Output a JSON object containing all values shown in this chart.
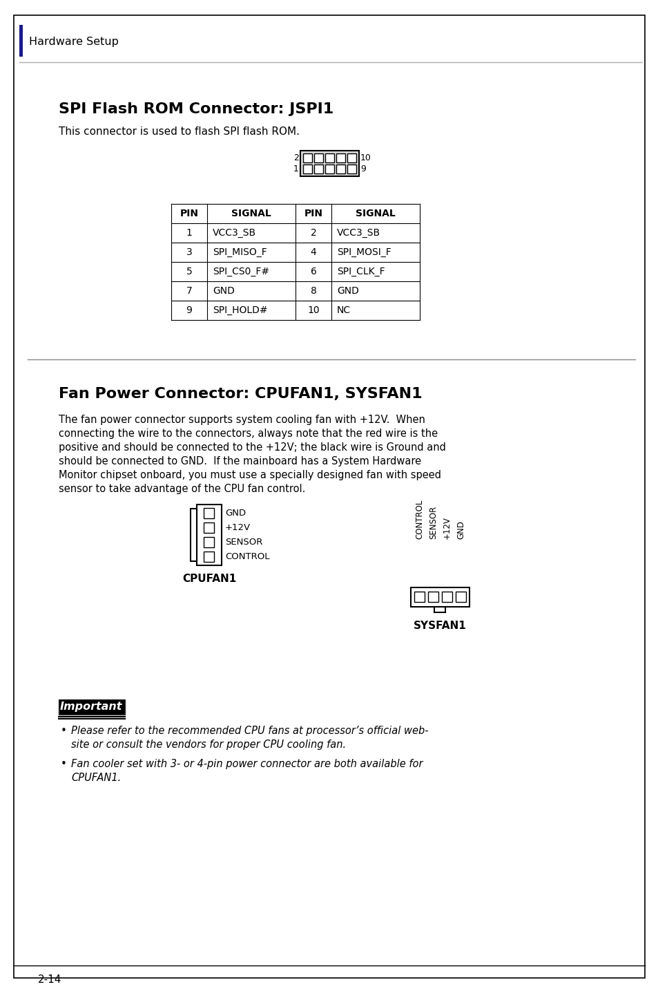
{
  "page_bg": "#ffffff",
  "border_color": "#000000",
  "header_bar_color": "#1a1a8c",
  "header_text": "Hardware Setup",
  "section1_title": "SPI Flash ROM Connector: JSPI1",
  "section1_desc": "This connector is used to flash SPI flash ROM.",
  "section2_title": "Fan Power Connector: CPUFAN1, SYSFAN1",
  "section2_desc_lines": [
    "The fan power connector supports system cooling fan with +12V.  When",
    "connecting the wire to the connectors, always note that the red wire is the",
    "positive and should be connected to the +12V; the black wire is Ground and",
    "should be connected to GND.  If the mainboard has a System Hardware",
    "Monitor chipset onboard, you must use a specially designed fan with speed",
    "sensor to take advantage of the CPU fan control."
  ],
  "table_headers": [
    "PIN",
    "SIGNAL",
    "PIN",
    "SIGNAL"
  ],
  "table_left_pins": [
    "1",
    "3",
    "5",
    "7",
    "9"
  ],
  "table_left_signals": [
    "VCC3_SB",
    "SPI_MISO_F",
    "SPI_CS0_F#",
    "GND",
    "SPI_HOLD#"
  ],
  "table_right_pins": [
    "2",
    "4",
    "6",
    "8",
    "10"
  ],
  "table_right_signals": [
    "VCC3_SB",
    "SPI_MOSI_F",
    "SPI_CLK_F",
    "GND",
    "NC"
  ],
  "cpufan_labels": [
    "GND",
    "+12V",
    "SENSOR",
    "CONTROL"
  ],
  "sysfan_labels": [
    "CONTROL",
    "SENSOR",
    "+12V",
    "GND"
  ],
  "cpufan_name": "CPUFAN1",
  "sysfan_name": "SYSFAN1",
  "important_text": "Important",
  "bullet1_line1": "Please refer to the recommended CPU fans at processor’s official web-",
  "bullet1_line2": "site or consult the vendors for proper CPU cooling fan.",
  "bullet2_line1": "Fan cooler set with 3- or 4-pin power connector are both available for",
  "bullet2_line2": "CPUFAN1.",
  "page_number": "2-14",
  "text_color": "#000000",
  "table_line_color": "#000000",
  "connector_fill": "#d8d8d8"
}
